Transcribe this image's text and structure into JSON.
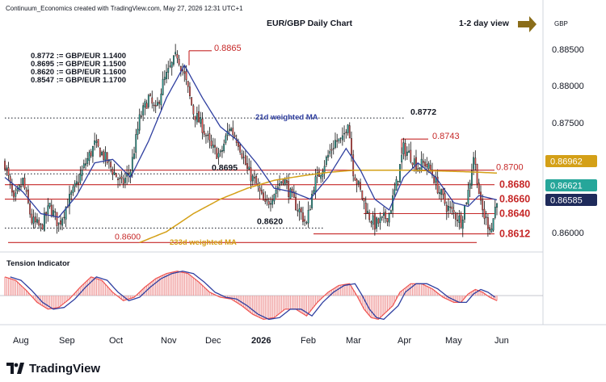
{
  "header": {
    "credit": "Continuum_Economics created with TradingView.com, May 27, 2026 12:31 UTC+1",
    "title": "EUR/GBP Daily Chart",
    "view_label": "1-2 day view",
    "currency": "GBP"
  },
  "footer": {
    "brand": "TradingView"
  },
  "colors": {
    "up": "#26a69a",
    "down": "#ef5350",
    "candle_edge": "#000000",
    "ma21": "#2f3fa0",
    "ma233": "#d4a017",
    "resistance": "#c62828",
    "tension_fill": "#ef9a9a",
    "arrow": "#8a6d1a"
  },
  "chart_data": {
    "type": "candlestick",
    "title": "EUR/GBP Daily Chart",
    "y_axis": {
      "ticks": [
        "0.88500",
        "0.88000",
        "0.87500",
        "0.87000",
        "0.86500",
        "0.86000"
      ],
      "range": [
        0.8587,
        0.8915
      ]
    },
    "x_axis": {
      "ticks": [
        "Aug",
        "Sep",
        "Oct",
        "Nov",
        "Dec",
        "2026",
        "Feb",
        "Mar",
        "Apr",
        "May",
        "Jun"
      ]
    },
    "conversion_notes": [
      "0.8772 := GBP/EUR 1.1400",
      "0.8695 := GBP/EUR 1.1500",
      "0.8620 := GBP/EUR 1.1600",
      "0.8547 := GBP/EUR 1.1700"
    ],
    "levels": [
      {
        "label": "0.8865",
        "value": 0.8865,
        "style": "marker"
      },
      {
        "label": "0.8772",
        "value": 0.8772,
        "style": "dotted"
      },
      {
        "label": "0.8743",
        "value": 0.8743,
        "style": "marker"
      },
      {
        "label": "0.8700",
        "value": 0.87,
        "style": "solid"
      },
      {
        "label": "0.8695",
        "value": 0.8695,
        "style": "dotted"
      },
      {
        "label": "0.8680",
        "value": 0.868,
        "style": "solid"
      },
      {
        "label": "0.8660",
        "value": 0.866,
        "style": "solid"
      },
      {
        "label": "0.8640",
        "value": 0.864,
        "style": "solid"
      },
      {
        "label": "0.8620",
        "value": 0.862,
        "style": "dotted"
      },
      {
        "label": "0.8612",
        "value": 0.8612,
        "style": "solid"
      },
      {
        "label": "0.8600",
        "value": 0.86,
        "style": "solid"
      }
    ],
    "price_tags": [
      {
        "label": "0.86962",
        "value": 0.86962,
        "color": "#d4a017"
      },
      {
        "label": "0.86621",
        "value": 0.86621,
        "color": "#26a69a"
      },
      {
        "label": "0.86585",
        "value": 0.86585,
        "color": "#1e2a5a"
      }
    ],
    "ma_labels": {
      "ma21": "21d weighted MA",
      "ma233": "233d weighted MA"
    },
    "indicator": {
      "name": "Tension Indicator",
      "range": [
        -1,
        1
      ]
    },
    "series_keypoints": {
      "close": [
        [
          0,
          0.871
        ],
        [
          5,
          0.8655
        ],
        [
          10,
          0.8685
        ],
        [
          15,
          0.863
        ],
        [
          20,
          0.862
        ],
        [
          25,
          0.865
        ],
        [
          30,
          0.8625
        ],
        [
          35,
          0.8655
        ],
        [
          40,
          0.868
        ],
        [
          45,
          0.871
        ],
        [
          50,
          0.8735
        ],
        [
          55,
          0.872
        ],
        [
          60,
          0.87
        ],
        [
          65,
          0.868
        ],
        [
          70,
          0.87
        ],
        [
          75,
          0.877
        ],
        [
          80,
          0.88
        ],
        [
          84,
          0.878
        ],
        [
          88,
          0.882
        ],
        [
          92,
          0.884
        ],
        [
          96,
          0.886
        ],
        [
          100,
          0.883
        ],
        [
          105,
          0.878
        ],
        [
          110,
          0.876
        ],
        [
          115,
          0.873
        ],
        [
          120,
          0.872
        ],
        [
          125,
          0.876
        ],
        [
          130,
          0.874
        ],
        [
          135,
          0.87
        ],
        [
          140,
          0.868
        ],
        [
          145,
          0.865
        ],
        [
          150,
          0.867
        ],
        [
          155,
          0.869
        ],
        [
          160,
          0.866
        ],
        [
          165,
          0.864
        ],
        [
          168,
          0.8625
        ],
        [
          172,
          0.868
        ],
        [
          176,
          0.87
        ],
        [
          180,
          0.872
        ],
        [
          184,
          0.874
        ],
        [
          188,
          0.874
        ],
        [
          191,
          0.877
        ],
        [
          194,
          0.87
        ],
        [
          198,
          0.867
        ],
        [
          202,
          0.864
        ],
        [
          206,
          0.8625
        ],
        [
          210,
          0.863
        ],
        [
          214,
          0.864
        ],
        [
          218,
          0.868
        ],
        [
          222,
          0.873
        ],
        [
          226,
          0.872
        ],
        [
          230,
          0.8705
        ],
        [
          234,
          0.871
        ],
        [
          238,
          0.8695
        ],
        [
          242,
          0.867
        ],
        [
          246,
          0.865
        ],
        [
          250,
          0.864
        ],
        [
          254,
          0.863
        ],
        [
          258,
          0.867
        ],
        [
          261,
          0.872
        ],
        [
          263,
          0.869
        ],
        [
          265,
          0.865
        ],
        [
          268,
          0.863
        ],
        [
          271,
          0.862
        ],
        [
          274,
          0.8662
        ]
      ],
      "ma21": [
        [
          0,
          0.869
        ],
        [
          10,
          0.867
        ],
        [
          20,
          0.864
        ],
        [
          30,
          0.8635
        ],
        [
          40,
          0.8665
        ],
        [
          50,
          0.871
        ],
        [
          60,
          0.8715
        ],
        [
          70,
          0.869
        ],
        [
          80,
          0.874
        ],
        [
          90,
          0.88
        ],
        [
          100,
          0.8845
        ],
        [
          110,
          0.88
        ],
        [
          120,
          0.876
        ],
        [
          130,
          0.874
        ],
        [
          140,
          0.871
        ],
        [
          150,
          0.8675
        ],
        [
          160,
          0.867
        ],
        [
          170,
          0.866
        ],
        [
          180,
          0.869
        ],
        [
          190,
          0.873
        ],
        [
          198,
          0.87
        ],
        [
          206,
          0.866
        ],
        [
          214,
          0.8645
        ],
        [
          222,
          0.869
        ],
        [
          230,
          0.871
        ],
        [
          240,
          0.869
        ],
        [
          250,
          0.8655
        ],
        [
          258,
          0.865
        ],
        [
          264,
          0.8665
        ],
        [
          274,
          0.8659
        ]
      ],
      "ma233": [
        [
          75,
          0.86
        ],
        [
          90,
          0.8615
        ],
        [
          105,
          0.864
        ],
        [
          120,
          0.866
        ],
        [
          135,
          0.8675
        ],
        [
          150,
          0.8686
        ],
        [
          165,
          0.8692
        ],
        [
          180,
          0.8697
        ],
        [
          195,
          0.87
        ],
        [
          210,
          0.87
        ],
        [
          225,
          0.87
        ],
        [
          240,
          0.8699
        ],
        [
          255,
          0.8698
        ],
        [
          265,
          0.8697
        ],
        [
          274,
          0.8696
        ]
      ],
      "tension": [
        [
          0,
          0.55
        ],
        [
          6,
          0.45
        ],
        [
          12,
          0.15
        ],
        [
          18,
          -0.2
        ],
        [
          24,
          -0.4
        ],
        [
          30,
          -0.35
        ],
        [
          36,
          -0.1
        ],
        [
          42,
          0.25
        ],
        [
          48,
          0.55
        ],
        [
          54,
          0.45
        ],
        [
          60,
          0.1
        ],
        [
          66,
          -0.15
        ],
        [
          72,
          -0.05
        ],
        [
          78,
          0.25
        ],
        [
          84,
          0.5
        ],
        [
          90,
          0.65
        ],
        [
          96,
          0.72
        ],
        [
          102,
          0.65
        ],
        [
          108,
          0.4
        ],
        [
          114,
          0.1
        ],
        [
          120,
          -0.05
        ],
        [
          126,
          -0.1
        ],
        [
          132,
          -0.3
        ],
        [
          138,
          -0.55
        ],
        [
          144,
          -0.7
        ],
        [
          150,
          -0.65
        ],
        [
          156,
          -0.4
        ],
        [
          162,
          -0.4
        ],
        [
          168,
          -0.6
        ],
        [
          174,
          -0.2
        ],
        [
          180,
          0.1
        ],
        [
          186,
          0.3
        ],
        [
          192,
          0.35
        ],
        [
          196,
          0.0
        ],
        [
          200,
          -0.4
        ],
        [
          204,
          -0.65
        ],
        [
          208,
          -0.7
        ],
        [
          212,
          -0.5
        ],
        [
          216,
          -0.3
        ],
        [
          220,
          0.1
        ],
        [
          226,
          0.35
        ],
        [
          232,
          0.35
        ],
        [
          238,
          0.2
        ],
        [
          244,
          -0.05
        ],
        [
          250,
          -0.2
        ],
        [
          254,
          -0.2
        ],
        [
          258,
          0.05
        ],
        [
          262,
          0.18
        ],
        [
          266,
          0.1
        ],
        [
          270,
          -0.05
        ],
        [
          274,
          -0.15
        ]
      ]
    }
  }
}
